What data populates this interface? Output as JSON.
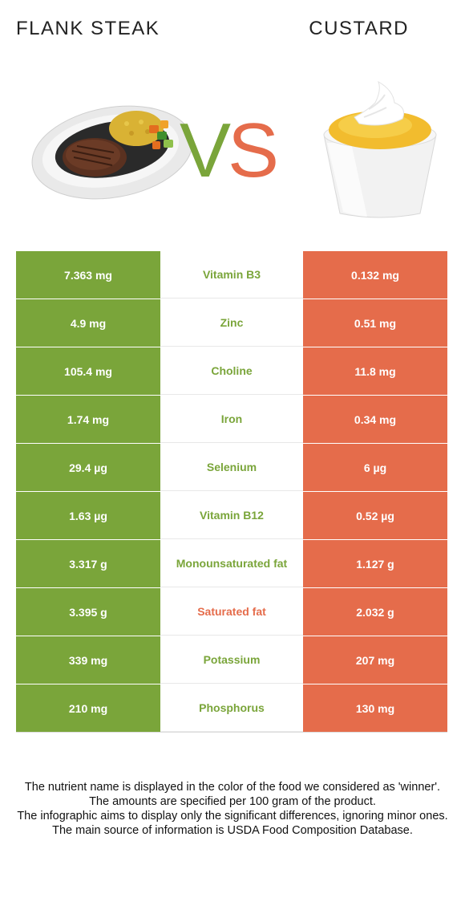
{
  "header": {
    "left_title": "FLANK STEAK",
    "right_title": "CUSTARD",
    "vs_v": "V",
    "vs_s": "S"
  },
  "colors": {
    "left_food": "#7aa53a",
    "right_food": "#e56c4b"
  },
  "rows": [
    {
      "left": "7.363 mg",
      "nutrient": "Vitamin B3",
      "right": "0.132 mg",
      "winner": "left"
    },
    {
      "left": "4.9 mg",
      "nutrient": "Zinc",
      "right": "0.51 mg",
      "winner": "left"
    },
    {
      "left": "105.4 mg",
      "nutrient": "Choline",
      "right": "11.8 mg",
      "winner": "left"
    },
    {
      "left": "1.74 mg",
      "nutrient": "Iron",
      "right": "0.34 mg",
      "winner": "left"
    },
    {
      "left": "29.4 µg",
      "nutrient": "Selenium",
      "right": "6 µg",
      "winner": "left"
    },
    {
      "left": "1.63 µg",
      "nutrient": "Vitamin B12",
      "right": "0.52 µg",
      "winner": "left"
    },
    {
      "left": "3.317 g",
      "nutrient": "Monounsaturated fat",
      "right": "1.127 g",
      "winner": "left"
    },
    {
      "left": "3.395 g",
      "nutrient": "Saturated fat",
      "right": "2.032 g",
      "winner": "right"
    },
    {
      "left": "339 mg",
      "nutrient": "Potassium",
      "right": "207 mg",
      "winner": "left"
    },
    {
      "left": "210 mg",
      "nutrient": "Phosphorus",
      "right": "130 mg",
      "winner": "left"
    }
  ],
  "footer": {
    "line1": "The nutrient name is displayed in the color of the food we considered as 'winner'.",
    "line2": "The amounts are specified per 100 gram of the product.",
    "line3": "The infographic aims to display only the significant differences, ignoring minor ones.",
    "line4": "The main source of information is USDA Food Composition Database."
  }
}
